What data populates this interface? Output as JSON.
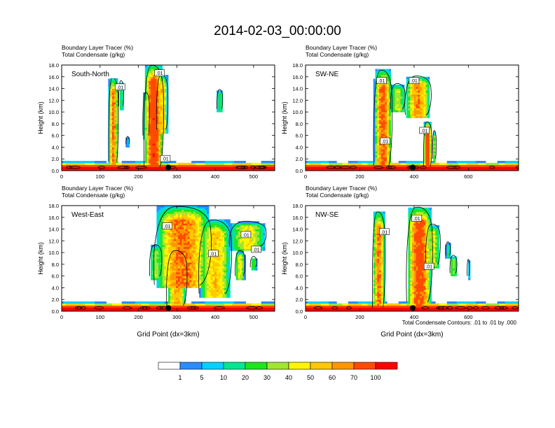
{
  "title": "2014-02-03_00:00:00",
  "colors": {
    "levels": [
      "#ffffff",
      "#2a8cff",
      "#00d2ff",
      "#00e890",
      "#1ee61e",
      "#a0e632",
      "#fff500",
      "#ffc800",
      "#ff9600",
      "#ff4b00",
      "#ff0000"
    ],
    "contour": "#000000",
    "frame": "#000000"
  },
  "chart_data": [
    {
      "type": "heatmap",
      "panel": "South-North",
      "titles": [
        "Boundary Layer Tracer   (%)",
        "Total Condensate   (g/kg)"
      ],
      "xlabel": "",
      "ylabel": "Height (km)",
      "xlim": [
        0,
        555
      ],
      "ylim": [
        0,
        18
      ],
      "xticks": [
        0,
        100,
        200,
        300,
        400,
        500
      ],
      "xtick_labels": [
        "0",
        "100",
        "200",
        "300",
        "400",
        "500"
      ],
      "yticks": [
        0,
        2,
        4,
        6,
        8,
        10,
        12,
        14,
        16,
        18
      ],
      "ytick_labels": [
        "0.0",
        "2.0",
        "4.0",
        "6.0",
        "8.0",
        "10.0",
        "12.0",
        "14.0",
        "16.0",
        "18.0"
      ],
      "site_x": 278,
      "contour_labels": [
        {
          "text": ".01",
          "x": 152,
          "y": 14.2
        },
        {
          "text": ".01",
          "x": 255,
          "y": 16.6
        },
        {
          "text": ".01",
          "x": 270,
          "y": 2.0
        }
      ],
      "plumes": [
        {
          "x": 135,
          "w": 12,
          "top": 15.5,
          "bot": 1.6,
          "max": 70
        },
        {
          "x": 155,
          "w": 6,
          "top": 15.0,
          "bot": 11,
          "max": 20
        },
        {
          "x": 240,
          "w": 24,
          "top": 17.6,
          "bot": 0.6,
          "max": 90
        },
        {
          "x": 262,
          "w": 14,
          "top": 16,
          "bot": 7,
          "max": 55
        },
        {
          "x": 220,
          "w": 8,
          "top": 13,
          "bot": 6,
          "max": 35
        },
        {
          "x": 412,
          "w": 7,
          "top": 13.5,
          "bot": 10.5,
          "max": 25
        },
        {
          "x": 172,
          "w": 4,
          "top": 5.5,
          "bot": 4.5,
          "max": 10
        }
      ]
    },
    {
      "type": "heatmap",
      "panel": "SW-NE",
      "titles": [
        "Boundary Layer Tracer   (%)",
        "Total Condensate   (g/kg)"
      ],
      "xlabel": "",
      "ylabel": "Height (km)",
      "xlim": [
        0,
        785
      ],
      "ylim": [
        0,
        18
      ],
      "xticks": [
        0,
        200,
        400,
        600
      ],
      "xtick_labels": [
        "0",
        "200",
        "400",
        "600"
      ],
      "yticks": [
        0,
        2,
        4,
        6,
        8,
        10,
        12,
        14,
        16,
        18
      ],
      "ytick_labels": [
        "0.0",
        "2.0",
        "4.0",
        "6.0",
        "8.0",
        "10.0",
        "12.0",
        "14.0",
        "16.0",
        "18.0"
      ],
      "site_x": 395,
      "contour_labels": [
        {
          "text": ".01",
          "x": 280,
          "y": 15.3
        },
        {
          "text": ".01",
          "x": 400,
          "y": 15.3
        },
        {
          "text": ".01",
          "x": 293,
          "y": 5.0
        },
        {
          "text": ".01",
          "x": 438,
          "y": 6.8
        }
      ],
      "plumes": [
        {
          "x": 285,
          "w": 32,
          "top": 16.8,
          "bot": 0.8,
          "max": 75
        },
        {
          "x": 340,
          "w": 25,
          "top": 14.5,
          "bot": 10.5,
          "max": 40
        },
        {
          "x": 415,
          "w": 45,
          "top": 15.8,
          "bot": 9.5,
          "max": 65
        },
        {
          "x": 450,
          "w": 14,
          "top": 8,
          "bot": 0.6,
          "max": 90
        },
        {
          "x": 475,
          "w": 6,
          "top": 6.5,
          "bot": 2,
          "max": 30
        }
      ]
    },
    {
      "type": "heatmap",
      "panel": "West-East",
      "titles": [
        "Boundary Layer Tracer   (%)",
        "Total Condensate   (g/kg)"
      ],
      "xlabel": "Grid Point (dx=3km)",
      "ylabel": "Height (km)",
      "xlim": [
        0,
        555
      ],
      "ylim": [
        0,
        18
      ],
      "xticks": [
        0,
        100,
        200,
        300,
        400,
        500
      ],
      "xtick_labels": [
        "0",
        "100",
        "200",
        "300",
        "400",
        "500"
      ],
      "yticks": [
        0,
        2,
        4,
        6,
        8,
        10,
        12,
        14,
        16,
        18
      ],
      "ytick_labels": [
        "0.0",
        "2.0",
        "4.0",
        "6.0",
        "8.0",
        "10.0",
        "12.0",
        "14.0",
        "16.0",
        "18.0"
      ],
      "site_x": 278,
      "contour_labels": [
        {
          "text": ".01",
          "x": 275,
          "y": 14.5
        },
        {
          "text": ".01",
          "x": 395,
          "y": 9.8
        },
        {
          "text": ".01",
          "x": 480,
          "y": 13.0
        },
        {
          "text": ".01",
          "x": 507,
          "y": 10.5
        }
      ],
      "plumes": [
        {
          "x": 315,
          "w": 70,
          "top": 17.5,
          "bot": 4.5,
          "max": 70
        },
        {
          "x": 300,
          "w": 25,
          "top": 10,
          "bot": 1.0,
          "max": 60
        },
        {
          "x": 400,
          "w": 40,
          "top": 15.2,
          "bot": 3.0,
          "max": 55
        },
        {
          "x": 485,
          "w": 45,
          "top": 15.0,
          "bot": 11,
          "max": 45
        },
        {
          "x": 465,
          "w": 12,
          "top": 10,
          "bot": 6,
          "max": 45
        },
        {
          "x": 500,
          "w": 8,
          "top": 9,
          "bot": 7.5,
          "max": 25
        },
        {
          "x": 245,
          "w": 15,
          "top": 11,
          "bot": 6,
          "max": 35
        }
      ]
    },
    {
      "type": "heatmap",
      "panel": "NW-SE",
      "titles": [
        "Boundary Layer Tracer   (%)",
        "Total Condensate   (g/kg)"
      ],
      "xlabel": "Grid Point (dx=3km)",
      "ylabel": "Height (km)",
      "xlim": [
        0,
        785
      ],
      "ylim": [
        0,
        18
      ],
      "xticks": [
        0,
        200,
        400,
        600
      ],
      "xtick_labels": [
        "0",
        "200",
        "400",
        "600"
      ],
      "yticks": [
        0,
        2,
        4,
        6,
        8,
        10,
        12,
        14,
        16,
        18
      ],
      "ytick_labels": [
        "0.0",
        "2.0",
        "4.0",
        "6.0",
        "8.0",
        "10.0",
        "12.0",
        "14.0",
        "16.0",
        "18.0"
      ],
      "site_x": 395,
      "contour_labels": [
        {
          "text": ".01",
          "x": 290,
          "y": 13.5
        },
        {
          "text": ".01",
          "x": 410,
          "y": 15.8
        },
        {
          "text": ".01",
          "x": 455,
          "y": 7.6
        }
      ],
      "plumes": [
        {
          "x": 270,
          "w": 22,
          "top": 16.6,
          "bot": 0.6,
          "max": 70
        },
        {
          "x": 420,
          "w": 45,
          "top": 17.4,
          "bot": 1.5,
          "max": 80
        },
        {
          "x": 470,
          "w": 25,
          "top": 14.5,
          "bot": 8.0,
          "max": 40
        },
        {
          "x": 525,
          "w": 8,
          "top": 11.5,
          "bot": 9.5,
          "max": 20
        },
        {
          "x": 545,
          "w": 12,
          "top": 9.2,
          "bot": 6.5,
          "max": 35
        },
        {
          "x": 600,
          "w": 4,
          "top": 8.5,
          "bot": 6,
          "max": 20
        }
      ]
    }
  ],
  "contour_note": "Total Condensate Contours: .01 to .01 by .000",
  "colorbar": {
    "labels": [
      "1",
      "5",
      "10",
      "20",
      "30",
      "40",
      "50",
      "60",
      "70",
      "100"
    ]
  }
}
